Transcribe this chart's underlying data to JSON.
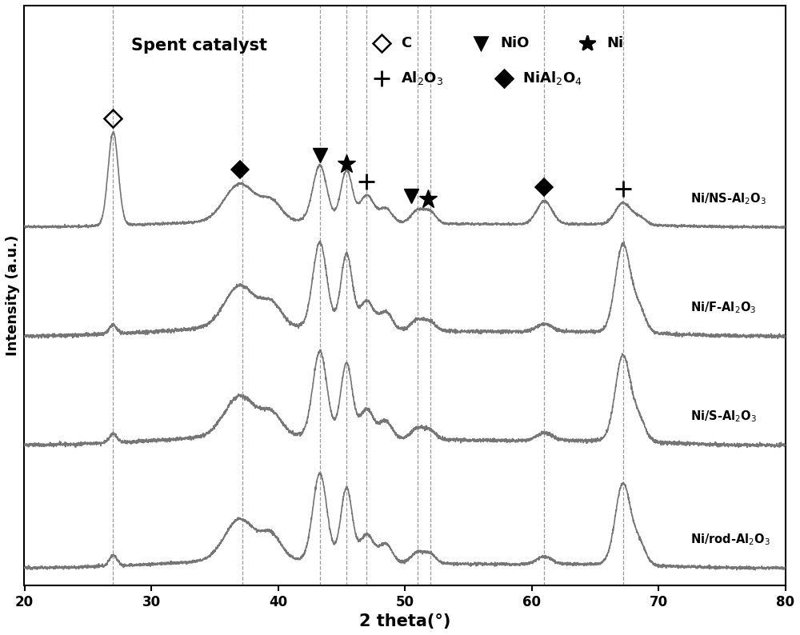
{
  "title": "Spent catalyst",
  "xlabel": "2 theta(°)",
  "ylabel": "Intensity (a.u.)",
  "xlim": [
    20,
    80
  ],
  "dashed_lines": [
    27.0,
    37.2,
    43.3,
    45.4,
    47.0,
    51.0,
    52.0,
    61.0,
    67.2
  ],
  "sample_labels": [
    "Ni/NS-Al$_2$O$_3$",
    "Ni/F-Al$_2$O$_3$",
    "Ni/S-Al$_2$O$_3$",
    "Ni/rod-Al$_2$O$_3$"
  ],
  "offsets": [
    1.0,
    0.68,
    0.36,
    0.0
  ],
  "line_color": "#757575",
  "bg_color": "#ffffff",
  "scale": 0.28,
  "noise_level": 0.008,
  "lw": 1.2
}
